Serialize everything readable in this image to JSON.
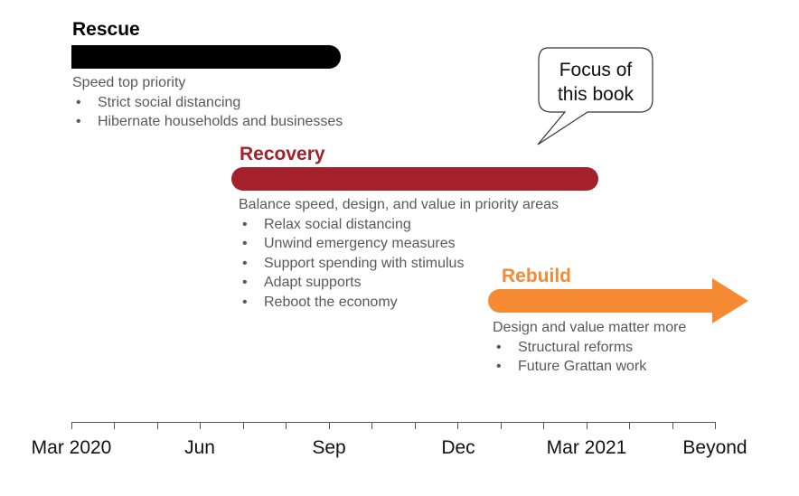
{
  "rescue": {
    "title": "Rescue",
    "color": "#000000",
    "subtitle": "Speed top priority",
    "bullets": [
      "Strict social distancing",
      "Hibernate households and businesses"
    ]
  },
  "recovery": {
    "title": "Recovery",
    "color": "#A4202A",
    "subtitle": "Balance speed, design, and value in priority areas",
    "bullets": [
      "Relax social distancing",
      "Unwind emergency measures",
      "Support spending with stimulus",
      "Adapt supports",
      "Reboot the economy"
    ]
  },
  "rebuild": {
    "title": "Rebuild",
    "color": "#F58A33",
    "subtitle": "Design and value matter more",
    "bullets": [
      "Structural reforms",
      "Future Grattan work"
    ]
  },
  "callout": {
    "line1": "Focus of",
    "line2": "this book"
  },
  "timeline": {
    "labels": [
      "Mar 2020",
      "Jun",
      "Sep",
      "Dec",
      "Mar 2021",
      "Beyond"
    ]
  }
}
